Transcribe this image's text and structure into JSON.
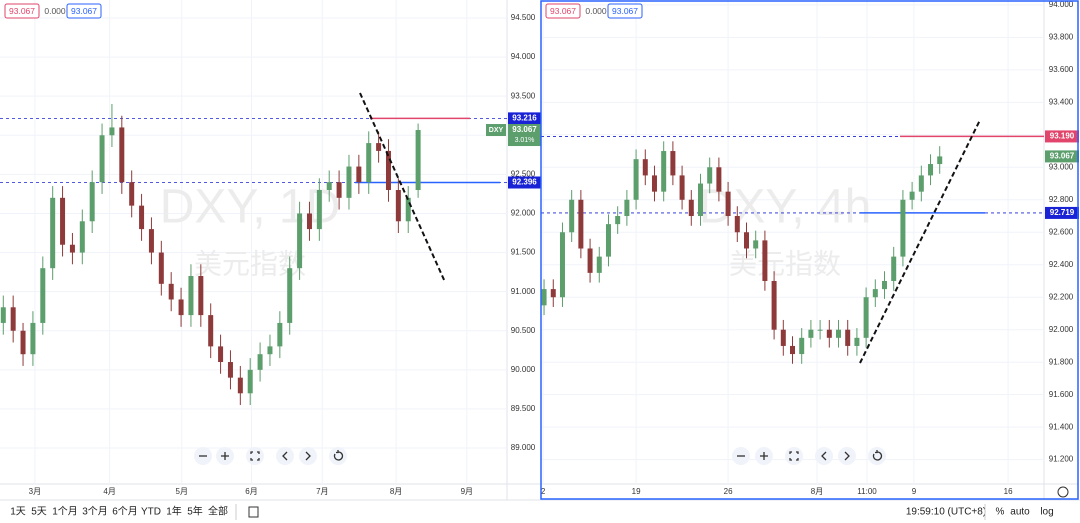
{
  "ui": {
    "ranges": [
      "1天",
      "5天",
      "1个月",
      "3个月",
      "6个月",
      "YTD",
      "1年",
      "5年",
      "全部"
    ],
    "clock": "19:59:10 (UTC+8)",
    "percent": "%",
    "log": "log",
    "auto": "auto"
  },
  "chart_data": [
    {
      "type": "candlestick",
      "watermark": "DXY, 1D",
      "watermark_subtitle": "美元指数",
      "symbol": "DXY",
      "header_values": [
        "93.067",
        "0.000",
        "93.067"
      ],
      "up_color": "#5c9e6c",
      "down_color": "#8e3a3a",
      "grid": true,
      "xlim": [
        0,
        154
      ],
      "xticks": [
        {
          "value": 10.6,
          "label": "3月"
        },
        {
          "value": 33.3,
          "label": "4月"
        },
        {
          "value": 55.2,
          "label": "5月"
        },
        {
          "value": 76.4,
          "label": "6月"
        },
        {
          "value": 97.9,
          "label": "7月"
        },
        {
          "value": 120.3,
          "label": "8月"
        },
        {
          "value": 141.8,
          "label": "9月"
        }
      ],
      "ylim": [
        88.54,
        94.73
      ],
      "yticks": [
        {
          "value": 89,
          "label": "89.000"
        },
        {
          "value": 89.5,
          "label": "89.500"
        },
        {
          "value": 90,
          "label": "90.000"
        },
        {
          "value": 90.5,
          "label": "90.500"
        },
        {
          "value": 91,
          "label": "91.000"
        },
        {
          "value": 91.5,
          "label": "91.500"
        },
        {
          "value": 92,
          "label": "92.000"
        },
        {
          "value": 92.5,
          "label": "92.500"
        },
        {
          "value": 93,
          "label": "93.000"
        },
        {
          "value": 93.5,
          "label": "93.500"
        },
        {
          "value": 94,
          "label": "94.000"
        },
        {
          "value": 94.5,
          "label": "94.500"
        }
      ],
      "price_lines": [
        {
          "value": 93.216,
          "label": "93.216",
          "color": "#1a22d6",
          "segment_color": "#e2456b"
        },
        {
          "value": 92.396,
          "label": "92.396",
          "color": "#1a22d6",
          "segment_color": "#2962ff"
        }
      ],
      "last_price": {
        "value": 93.067,
        "label": "93.067"
      },
      "change_label": "3.01%",
      "x": [
        1,
        4,
        7,
        10,
        13,
        16,
        19,
        22,
        25,
        28,
        31,
        34,
        37,
        40,
        43,
        46,
        49,
        52,
        55,
        58,
        61,
        64,
        67,
        70,
        73,
        76,
        79,
        82,
        85,
        88,
        91,
        94,
        97,
        100,
        103,
        106,
        109,
        112,
        115,
        118,
        121,
        124,
        127
      ],
      "open": [
        90.6,
        90.8,
        90.5,
        90.2,
        90.6,
        91.3,
        92.2,
        91.6,
        91.5,
        91.9,
        92.4,
        93.0,
        93.1,
        92.4,
        92.1,
        91.8,
        91.5,
        91.1,
        90.9,
        90.7,
        91.2,
        90.7,
        90.3,
        90.1,
        89.9,
        89.7,
        90.0,
        90.2,
        90.3,
        90.6,
        91.3,
        92.0,
        91.8,
        92.3,
        92.4,
        92.2,
        92.6,
        92.4,
        92.9,
        92.8,
        92.3,
        91.9,
        92.3
      ],
      "high": [
        90.95,
        90.95,
        90.6,
        90.75,
        91.45,
        92.35,
        92.35,
        91.75,
        92.05,
        92.55,
        93.15,
        93.4,
        93.25,
        92.55,
        92.25,
        91.95,
        91.65,
        91.25,
        91.05,
        91.35,
        91.35,
        90.85,
        90.45,
        90.25,
        90.05,
        90.15,
        90.35,
        90.45,
        90.75,
        91.45,
        92.15,
        92.15,
        92.45,
        92.55,
        92.55,
        92.75,
        92.75,
        93.05,
        93.05,
        92.95,
        92.45,
        92.35,
        93.15
      ],
      "low": [
        90.45,
        90.35,
        90.05,
        90.05,
        90.45,
        91.15,
        91.45,
        91.35,
        91.35,
        91.75,
        92.25,
        92.85,
        92.25,
        91.95,
        91.65,
        91.35,
        90.95,
        90.75,
        90.55,
        90.55,
        90.55,
        90.15,
        89.95,
        89.75,
        89.55,
        89.55,
        89.85,
        90.05,
        90.15,
        90.45,
        91.15,
        91.65,
        91.65,
        92.15,
        92.05,
        92.05,
        92.25,
        92.25,
        92.65,
        92.15,
        91.75,
        91.75,
        92.2
      ],
      "close": [
        90.8,
        90.5,
        90.2,
        90.6,
        91.3,
        92.2,
        91.6,
        91.5,
        91.9,
        92.4,
        93.0,
        93.1,
        92.4,
        92.1,
        91.8,
        91.5,
        91.1,
        90.9,
        90.7,
        91.2,
        90.7,
        90.3,
        90.1,
        89.9,
        89.7,
        90.0,
        90.2,
        90.3,
        90.6,
        91.3,
        92.0,
        91.8,
        92.3,
        92.4,
        92.2,
        92.6,
        92.4,
        92.9,
        92.8,
        92.3,
        91.9,
        92.2,
        93.067
      ]
    },
    {
      "type": "candlestick",
      "watermark": "DXY, 4h",
      "watermark_subtitle": "美元指数",
      "header_values": [
        "93.067",
        "0.000",
        "93.067"
      ],
      "up_color": "#5c9e6c",
      "down_color": "#8e3a3a",
      "grid": true,
      "xlim": [
        0,
        164
      ],
      "xticks": [
        {
          "value": 0.7,
          "label": "2"
        },
        {
          "value": 31,
          "label": "19"
        },
        {
          "value": 61,
          "label": "26"
        },
        {
          "value": 90,
          "label": "8月"
        },
        {
          "value": 106.3,
          "label": "11:00"
        },
        {
          "value": 121.6,
          "label": "9"
        },
        {
          "value": 152.3,
          "label": "16"
        }
      ],
      "ylim": [
        91.05,
        94.03
      ],
      "yticks": [
        {
          "value": 91.2,
          "label": "91.200"
        },
        {
          "value": 91.4,
          "label": "91.400"
        },
        {
          "value": 91.6,
          "label": "91.600"
        },
        {
          "value": 91.8,
          "label": "91.800"
        },
        {
          "value": 92,
          "label": "92.000"
        },
        {
          "value": 92.2,
          "label": "92.200"
        },
        {
          "value": 92.4,
          "label": "92.400"
        },
        {
          "value": 92.6,
          "label": "92.600"
        },
        {
          "value": 92.8,
          "label": "92.800"
        },
        {
          "value": 93,
          "label": "93.000"
        },
        {
          "value": 93.2,
          "label": "93.200"
        },
        {
          "value": 93.4,
          "label": "93.400"
        },
        {
          "value": 93.6,
          "label": "93.600"
        },
        {
          "value": 93.8,
          "label": "93.800"
        },
        {
          "value": 94,
          "label": "94.000"
        }
      ],
      "price_lines": [
        {
          "value": 93.19,
          "label": "93.190",
          "color": "#1a22d6",
          "segment_color": "#e2456b"
        },
        {
          "value": 92.719,
          "label": "92.719",
          "color": "#1a22d6",
          "segment_color": "#2962ff"
        }
      ],
      "last_price": {
        "value": 93.067,
        "label": "93.067"
      },
      "x": [
        1,
        4,
        7,
        10,
        13,
        16,
        19,
        22,
        25,
        28,
        31,
        34,
        37,
        40,
        43,
        46,
        49,
        52,
        55,
        58,
        61,
        64,
        67,
        70,
        73,
        76,
        79,
        82,
        85,
        88,
        91,
        94,
        97,
        100,
        103,
        106,
        109,
        112,
        115,
        118,
        121,
        124,
        127,
        130
      ],
      "open": [
        92.15,
        92.25,
        92.2,
        92.6,
        92.8,
        92.5,
        92.35,
        92.45,
        92.65,
        92.7,
        92.8,
        93.05,
        92.95,
        92.85,
        93.1,
        92.95,
        92.8,
        92.7,
        92.9,
        93.0,
        92.85,
        92.7,
        92.6,
        92.5,
        92.55,
        92.3,
        92.0,
        91.9,
        91.85,
        91.95,
        92.0,
        92.0,
        91.95,
        92.0,
        91.9,
        91.95,
        92.2,
        92.25,
        92.3,
        92.45,
        92.8,
        92.85,
        92.95,
        93.02
      ],
      "high": [
        92.31,
        92.31,
        92.66,
        92.86,
        92.86,
        92.56,
        92.51,
        92.71,
        92.76,
        92.86,
        93.11,
        93.11,
        93.01,
        93.16,
        93.16,
        93.01,
        92.86,
        92.96,
        93.06,
        93.06,
        92.91,
        92.76,
        92.66,
        92.61,
        92.61,
        92.36,
        92.06,
        91.96,
        92.01,
        92.06,
        92.06,
        92.06,
        92.06,
        92.06,
        92.01,
        92.26,
        92.31,
        92.36,
        92.51,
        92.86,
        92.91,
        93.01,
        93.08,
        93.13
      ],
      "low": [
        92.09,
        92.14,
        92.14,
        92.54,
        92.44,
        92.29,
        92.29,
        92.39,
        92.59,
        92.64,
        92.74,
        92.89,
        92.79,
        92.79,
        92.89,
        92.74,
        92.64,
        92.64,
        92.84,
        92.79,
        92.64,
        92.54,
        92.44,
        92.44,
        92.24,
        91.94,
        91.84,
        91.79,
        91.79,
        91.89,
        91.94,
        91.89,
        91.89,
        91.84,
        91.84,
        91.89,
        92.14,
        92.19,
        92.24,
        92.39,
        92.74,
        92.79,
        92.89,
        92.96
      ],
      "close": [
        92.25,
        92.2,
        92.6,
        92.8,
        92.5,
        92.35,
        92.45,
        92.65,
        92.7,
        92.8,
        93.05,
        92.95,
        92.85,
        93.1,
        92.95,
        92.8,
        92.7,
        92.9,
        93.0,
        92.85,
        92.7,
        92.6,
        92.5,
        92.55,
        92.3,
        92.0,
        91.9,
        91.85,
        91.95,
        92.0,
        92.0,
        91.95,
        92.0,
        91.9,
        91.95,
        92.2,
        92.25,
        92.3,
        92.45,
        92.8,
        92.85,
        92.95,
        93.02,
        93.067
      ]
    }
  ]
}
